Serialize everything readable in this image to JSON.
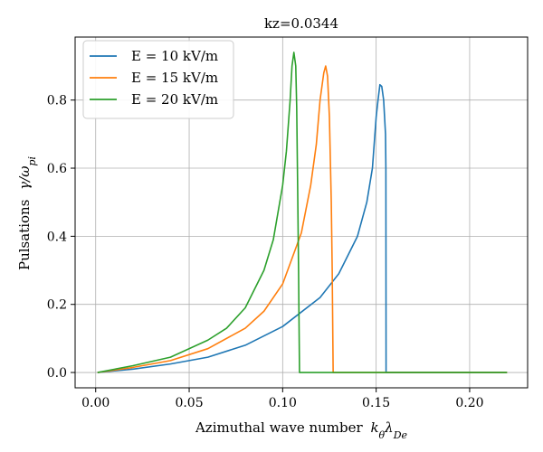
{
  "chart_data": {
    "type": "line",
    "title": "kz=0.0344",
    "xlabel": "Azimuthal wave number",
    "xlabel_symbol": "kθλDe",
    "ylabel": "Pulsations",
    "ylabel_symbol": "γ/ωpi",
    "xlim": [
      -0.011,
      0.231
    ],
    "ylim": [
      -0.045,
      0.985
    ],
    "xticks": [
      0.0,
      0.05,
      0.1,
      0.15,
      0.2
    ],
    "xtick_labels": [
      "0.00",
      "0.05",
      "0.10",
      "0.15",
      "0.20"
    ],
    "yticks": [
      0.0,
      0.2,
      0.4,
      0.6,
      0.8
    ],
    "ytick_labels": [
      "0.0",
      "0.2",
      "0.4",
      "0.6",
      "0.8"
    ],
    "grid": true,
    "legend_position": "upper-left",
    "series": [
      {
        "name": "E = 10 kV/m",
        "color": "#1f77b4",
        "x": [
          0.001,
          0.02,
          0.04,
          0.06,
          0.08,
          0.1,
          0.12,
          0.13,
          0.14,
          0.145,
          0.148,
          0.15,
          0.151,
          0.152,
          0.153,
          0.154,
          0.155,
          0.1552,
          0.1553,
          0.1555,
          0.16,
          0.22
        ],
        "y": [
          0.0,
          0.01,
          0.025,
          0.045,
          0.08,
          0.135,
          0.22,
          0.29,
          0.4,
          0.5,
          0.6,
          0.75,
          0.8,
          0.845,
          0.84,
          0.8,
          0.7,
          0.6,
          0.0,
          0.0,
          0.0,
          0.0
        ]
      },
      {
        "name": "E = 15 kV/m",
        "color": "#ff7f0e",
        "x": [
          0.001,
          0.02,
          0.04,
          0.06,
          0.08,
          0.09,
          0.1,
          0.11,
          0.115,
          0.118,
          0.12,
          0.122,
          0.123,
          0.124,
          0.125,
          0.126,
          0.1265,
          0.127,
          0.22
        ],
        "y": [
          0.0,
          0.015,
          0.035,
          0.07,
          0.13,
          0.18,
          0.26,
          0.41,
          0.55,
          0.67,
          0.8,
          0.88,
          0.9,
          0.87,
          0.75,
          0.5,
          0.3,
          0.0,
          0.0
        ],
        "draw_to": 0.127
      },
      {
        "name": "E = 20 kV/m",
        "color": "#2ca02c",
        "x": [
          0.001,
          0.02,
          0.04,
          0.06,
          0.07,
          0.08,
          0.09,
          0.095,
          0.1,
          0.102,
          0.104,
          0.105,
          0.106,
          0.107,
          0.1075,
          0.108,
          0.1085,
          0.109,
          0.22
        ],
        "y": [
          0.0,
          0.02,
          0.045,
          0.095,
          0.13,
          0.19,
          0.3,
          0.39,
          0.55,
          0.65,
          0.8,
          0.9,
          0.94,
          0.9,
          0.78,
          0.55,
          0.3,
          0.0,
          0.0
        ],
        "draw_to": 0.109
      }
    ]
  }
}
